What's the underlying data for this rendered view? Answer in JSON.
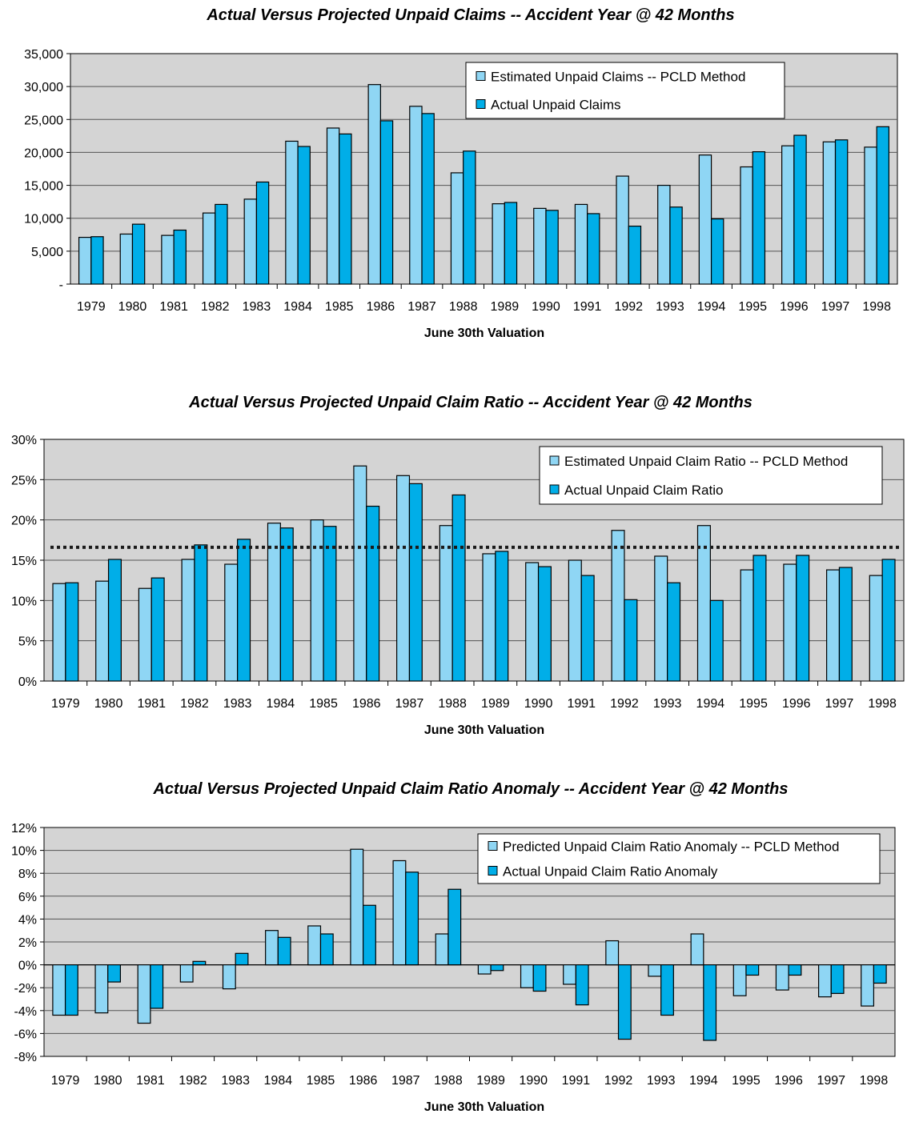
{
  "colors": {
    "estimated": "#8fd6f4",
    "actual": "#00aee8",
    "plot_bg": "#d4d4d4",
    "grid": "#555555",
    "bar_stroke": "#000000"
  },
  "chart_data": [
    {
      "type": "bar",
      "title": "Actual Versus Projected Unpaid Claims -- Accident Year @ 42 Months",
      "xlabel": "June 30th Valuation",
      "ylabel": "",
      "ylim": [
        0,
        35000
      ],
      "yticks": [
        0,
        5000,
        10000,
        15000,
        20000,
        25000,
        30000,
        35000
      ],
      "ytick_labels": [
        "-",
        "5,000",
        "10,000",
        "15,000",
        "20,000",
        "25,000",
        "30,000",
        "35,000"
      ],
      "grid": true,
      "legend_position": "top-right",
      "categories": [
        "1979",
        "1980",
        "1981",
        "1982",
        "1983",
        "1984",
        "1985",
        "1986",
        "1987",
        "1988",
        "1989",
        "1990",
        "1991",
        "1992",
        "1993",
        "1994",
        "1995",
        "1996",
        "1997",
        "1998"
      ],
      "series": [
        {
          "name": "Estimated Unpaid Claims -- PCLD Method",
          "color_key": "estimated",
          "values": [
            7100,
            7600,
            7400,
            10800,
            12900,
            21700,
            23700,
            30300,
            27000,
            16900,
            12200,
            11500,
            12100,
            16400,
            15000,
            19600,
            17800,
            21000,
            21600,
            20800
          ]
        },
        {
          "name": "Actual Unpaid Claims",
          "color_key": "actual",
          "values": [
            7200,
            9100,
            8200,
            12100,
            15500,
            20900,
            22800,
            24800,
            25900,
            20200,
            12400,
            11200,
            10700,
            8800,
            11700,
            9900,
            20100,
            22600,
            21900,
            23900
          ]
        }
      ]
    },
    {
      "type": "bar",
      "title": "Actual Versus Projected Unpaid Claim Ratio -- Accident Year @ 42 Months",
      "xlabel": "June 30th Valuation",
      "ylabel": "",
      "ylim": [
        0,
        30
      ],
      "yticks": [
        0,
        5,
        10,
        15,
        20,
        25,
        30
      ],
      "ytick_labels": [
        "0%",
        "5%",
        "10%",
        "15%",
        "20%",
        "25%",
        "30%"
      ],
      "grid": true,
      "legend_position": "top-right",
      "reference_line": 16.6,
      "categories": [
        "1979",
        "1980",
        "1981",
        "1982",
        "1983",
        "1984",
        "1985",
        "1986",
        "1987",
        "1988",
        "1989",
        "1990",
        "1991",
        "1992",
        "1993",
        "1994",
        "1995",
        "1996",
        "1997",
        "1998"
      ],
      "series": [
        {
          "name": "Estimated Unpaid Claim Ratio -- PCLD Method",
          "color_key": "estimated",
          "values": [
            12.1,
            12.4,
            11.5,
            15.1,
            14.5,
            19.6,
            20.0,
            26.7,
            25.5,
            19.3,
            15.8,
            14.7,
            15.0,
            18.7,
            15.5,
            19.3,
            13.8,
            14.5,
            13.8,
            13.1
          ]
        },
        {
          "name": "Actual Unpaid Claim Ratio",
          "color_key": "actual",
          "values": [
            12.2,
            15.1,
            12.8,
            16.9,
            17.6,
            19.0,
            19.2,
            21.7,
            24.5,
            23.1,
            16.1,
            14.2,
            13.1,
            10.1,
            12.2,
            10.0,
            15.6,
            15.6,
            14.1,
            15.1
          ]
        }
      ]
    },
    {
      "type": "bar",
      "title": "Actual Versus Projected Unpaid Claim Ratio Anomaly -- Accident Year @ 42 Months",
      "xlabel": "June 30th Valuation",
      "ylabel": "",
      "ylim": [
        -8,
        12
      ],
      "yticks": [
        -8,
        -6,
        -4,
        -2,
        0,
        2,
        4,
        6,
        8,
        10,
        12
      ],
      "ytick_labels": [
        "-8%",
        "-6%",
        "-4%",
        "-2%",
        "0%",
        "2%",
        "4%",
        "6%",
        "8%",
        "10%",
        "12%"
      ],
      "grid": true,
      "legend_position": "top-right",
      "categories": [
        "1979",
        "1980",
        "1981",
        "1982",
        "1983",
        "1984",
        "1985",
        "1986",
        "1987",
        "1988",
        "1989",
        "1990",
        "1991",
        "1992",
        "1993",
        "1994",
        "1995",
        "1996",
        "1997",
        "1998"
      ],
      "series": [
        {
          "name": "Predicted Unpaid Claim Ratio Anomaly -- PCLD Method",
          "color_key": "estimated",
          "values": [
            -4.4,
            -4.2,
            -5.1,
            -1.5,
            -2.1,
            3.0,
            3.4,
            10.1,
            9.1,
            2.7,
            -0.8,
            -2.0,
            -1.7,
            2.1,
            -1.0,
            2.7,
            -2.7,
            -2.2,
            -2.8,
            -3.6
          ]
        },
        {
          "name": "Actual Unpaid Claim Ratio Anomaly",
          "color_key": "actual",
          "values": [
            -4.4,
            -1.5,
            -3.8,
            0.3,
            1.0,
            2.4,
            2.7,
            5.2,
            8.1,
            6.6,
            -0.5,
            -2.3,
            -3.5,
            -6.5,
            -4.4,
            -6.6,
            -0.9,
            -0.9,
            -2.5,
            -1.6
          ]
        }
      ]
    }
  ]
}
